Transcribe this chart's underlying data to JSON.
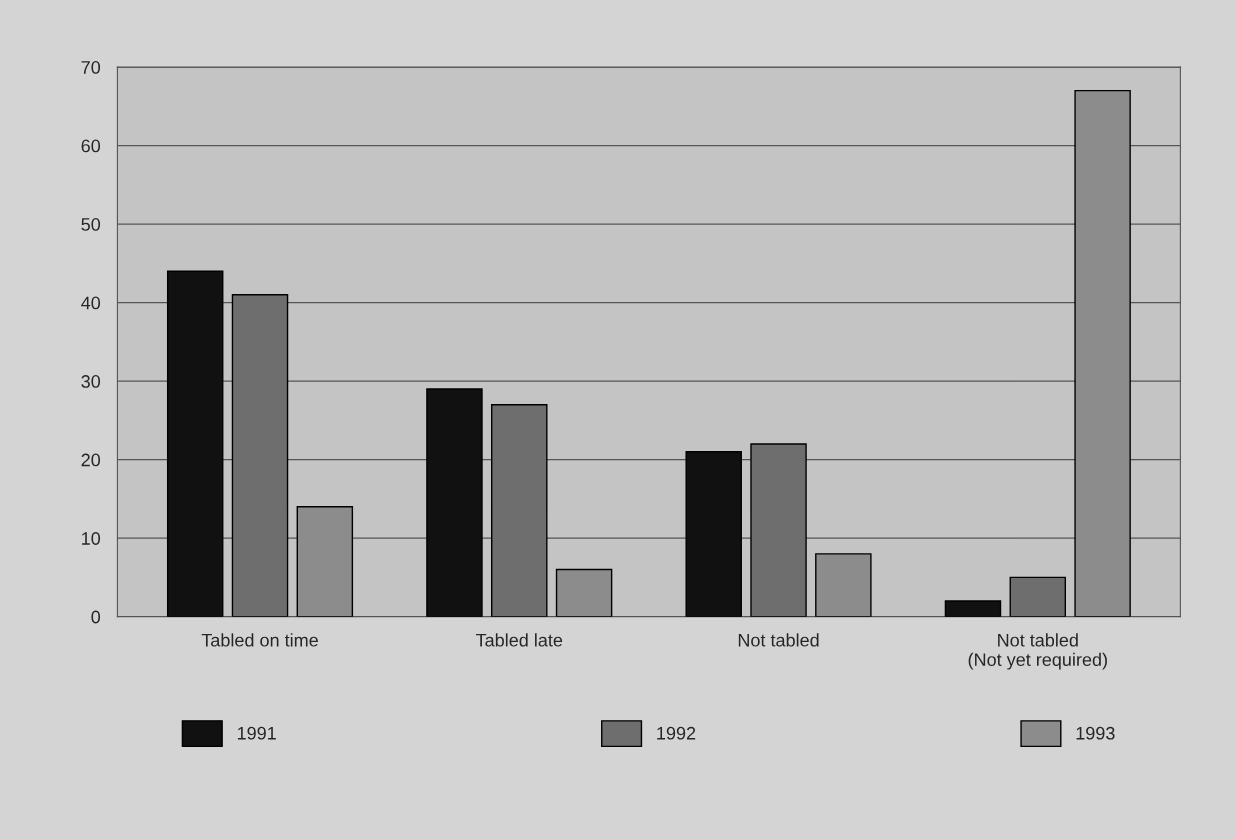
{
  "chart_data": {
    "type": "bar",
    "categories": [
      "Tabled on time",
      "Tabled late",
      "Not tabled",
      "Not tabled\n(Not yet required)"
    ],
    "series": [
      {
        "name": "1991",
        "color": "#111111",
        "values": [
          44,
          29,
          21,
          2
        ]
      },
      {
        "name": "1992",
        "color": "#6e6e6e",
        "values": [
          41,
          27,
          22,
          5
        ]
      },
      {
        "name": "1993",
        "color": "#8c8c8c",
        "values": [
          14,
          6,
          8,
          67
        ]
      }
    ],
    "ylim": [
      0,
      70
    ],
    "yticks": [
      0,
      10,
      20,
      30,
      40,
      50,
      60,
      70
    ],
    "grid": "y",
    "legend": "bottom"
  }
}
